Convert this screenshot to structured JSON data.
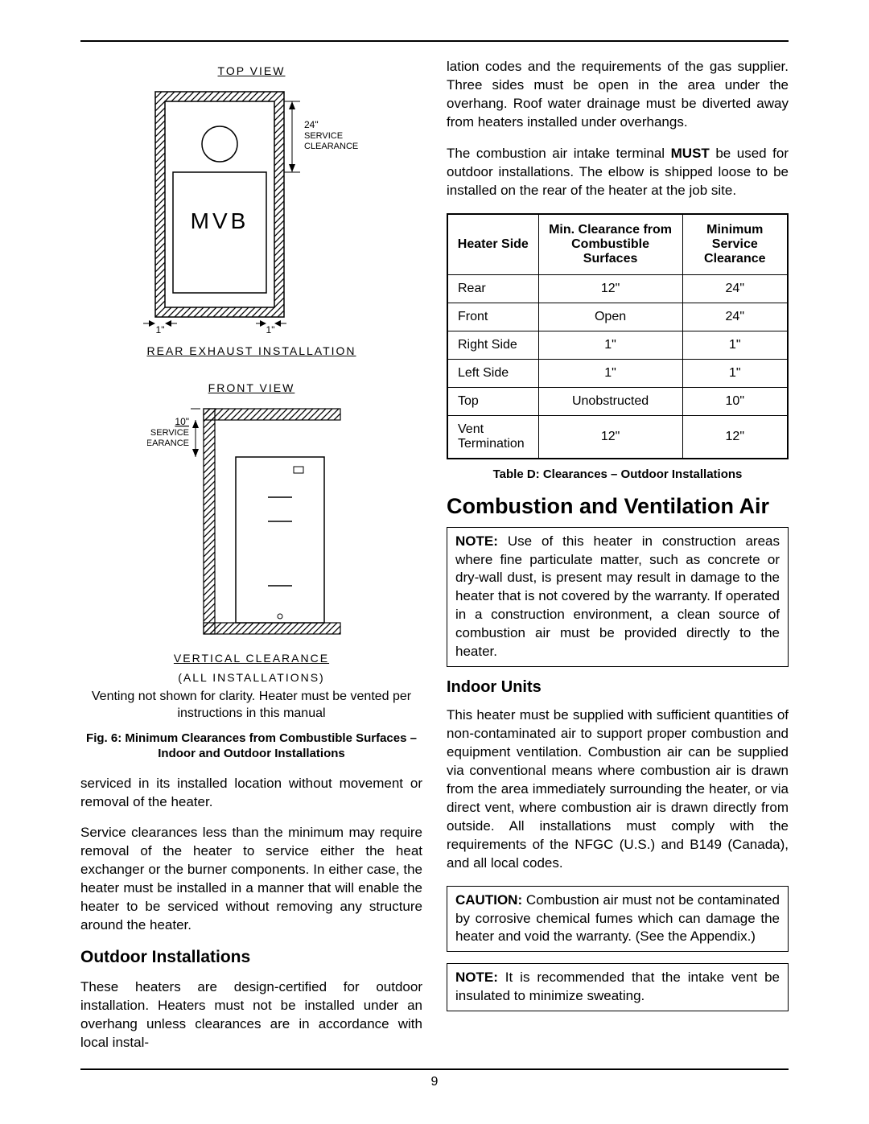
{
  "figures": {
    "top_view": {
      "label": "TOP  VIEW",
      "unit_text": "MVB",
      "clearance_lines": [
        "24\"",
        "SERVICE",
        "CLEARANCE"
      ],
      "left_gap": "1\"",
      "right_gap": "1\"",
      "footer": "REAR  EXHAUST  INSTALLATION"
    },
    "front_view": {
      "label": "FRONT  VIEW",
      "clearance_lines": [
        "10\"",
        "SERVICE",
        "CLEARANCE"
      ],
      "footer": "VERTICAL  CLEARANCE",
      "footer2": "(ALL  INSTALLATIONS)"
    },
    "note": "Venting not shown for clarity. Heater must be vented per instructions in this manual",
    "caption": "Fig. 6: Minimum Clearances from Combustible Surfaces – Indoor and Outdoor Installations"
  },
  "left_text": {
    "p1": "serviced in its installed location without movement or removal of the heater.",
    "p2": "Service clearances less than the minimum may require removal of the heater to service either the heat exchanger or the burner components. In either case, the heater must be installed in a manner that will enable the heater to be serviced without removing any structure around the heater."
  },
  "outdoor": {
    "heading": "Outdoor Installations",
    "p1": "These heaters are design-certified for outdoor installation. Heaters must not be installed under an overhang unless clearances are in accordance with local instal-"
  },
  "right_text": {
    "p1": "lation codes and the requirements of the gas supplier. Three sides must be open in the area under the overhang. Roof water drainage must be diverted away from heaters installed under overhangs.",
    "p2a": "The combustion air intake terminal ",
    "p2b": "MUST",
    "p2c": " be used for outdoor installations. The elbow is shipped loose to be installed on the rear of the heater at the job site."
  },
  "table": {
    "headers": [
      "Heater Side",
      "Min. Clearance from Combustible Surfaces",
      "Minimum Service Clearance"
    ],
    "rows": [
      [
        "Rear",
        "12\"",
        "24\""
      ],
      [
        "Front",
        "Open",
        "24\""
      ],
      [
        "Right Side",
        "1\"",
        "1\""
      ],
      [
        "Left Side",
        "1\"",
        "1\""
      ],
      [
        "Top",
        "Unobstructed",
        "10\""
      ],
      [
        "Vent Termination",
        "12\"",
        "12\""
      ]
    ],
    "caption": "Table D: Clearances – Outdoor Installations"
  },
  "combustion": {
    "heading": "Combustion and Ventilation Air",
    "note_bold": "NOTE:",
    "note_text": " Use of this heater in construction areas where fine particulate matter, such as concrete or dry-wall dust, is present may result in damage to the heater that is not covered by the warranty. If operated in a construction environment, a clean source of combustion air must be provided directly to the heater.",
    "indoor_heading": "Indoor Units",
    "p1": "This heater must be supplied with sufficient quantities of non-contaminated air to support proper combustion and equipment ventilation. Combustion air can be supplied via conventional means where combustion air is drawn from the area immediately surrounding the heater, or via direct vent, where combustion air is drawn directly from outside. All installations must comply with the requirements of the NFGC (U.S.) and B149 (Canada), and all local codes.",
    "caution_bold": "CAUTION:",
    "caution_text": " Combustion air must not be contaminated by corrosive chemical fumes which can damage the heater and void the warranty. (See the Appendix.)",
    "note2_bold": "NOTE:",
    "note2_text": " It is recommended that the intake vent be insulated to minimize sweating."
  },
  "page_number": "9"
}
